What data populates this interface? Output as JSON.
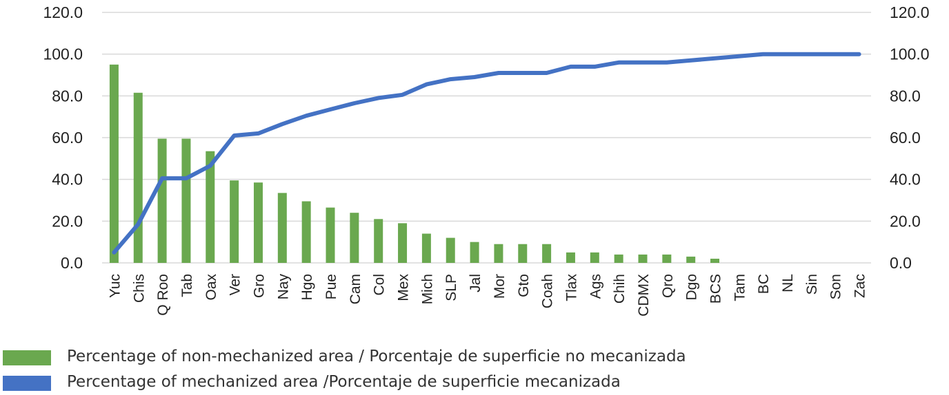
{
  "chart_data": {
    "type": "bar+line",
    "categories": [
      "Yuc",
      "Chis",
      "Q Roo",
      "Tab",
      "Oax",
      "Ver",
      "Gro",
      "Nay",
      "Hgo",
      "Pue",
      "Cam",
      "Col",
      "Mex",
      "Mich",
      "SLP",
      "Jal",
      "Mor",
      "Gto",
      "Coah",
      "Tlax",
      "Ags",
      "Chih",
      "CDMX",
      "Qro",
      "Dgo",
      "BCS",
      "Tam",
      "BC",
      "NL",
      "Sin",
      "Son",
      "Zac"
    ],
    "series": [
      {
        "name": "Percentage of non-mechanized area / Porcentaje de superficie no mecanizada",
        "type": "bar",
        "axis": "left",
        "color": "#6aa84f",
        "values": [
          95,
          81.5,
          59.5,
          59.5,
          53.5,
          39.5,
          38.5,
          33.5,
          29.5,
          26.5,
          24,
          21,
          19,
          14,
          12,
          10,
          9,
          9,
          9,
          5,
          5,
          4,
          4,
          4,
          3,
          2,
          0,
          0,
          0,
          0,
          0,
          0
        ]
      },
      {
        "name": "Percentage of mechanized area /Porcentaje de superficie mecanizada",
        "type": "line",
        "axis": "right",
        "color": "#4472c4",
        "values": [
          5,
          18.5,
          40.5,
          40.5,
          46.5,
          61,
          62,
          66.5,
          70.5,
          73.5,
          76.5,
          79,
          80.5,
          85.5,
          88,
          89,
          91,
          91,
          91,
          94,
          94,
          96,
          96,
          96,
          97,
          98,
          99,
          100,
          100,
          100,
          100,
          100
        ]
      }
    ],
    "ylim": [
      0,
      120
    ],
    "y_ticks": [
      "0.0",
      "20.0",
      "40.0",
      "60.0",
      "80.0",
      "100.0",
      "120.0"
    ],
    "y2_ticks": [
      "0.0",
      "20.0",
      "40.0",
      "60.0",
      "80.0",
      "100.0",
      "120.0"
    ],
    "grid": true,
    "legend_position": "bottom-left"
  },
  "legend": {
    "items": [
      {
        "label": "Percentage of non-mechanized area / Porcentaje de superficie no mecanizada",
        "color": "#6aa84f"
      },
      {
        "label": "Percentage of mechanized area /Porcentaje de superficie mecanizada",
        "color": "#4472c4"
      }
    ]
  }
}
